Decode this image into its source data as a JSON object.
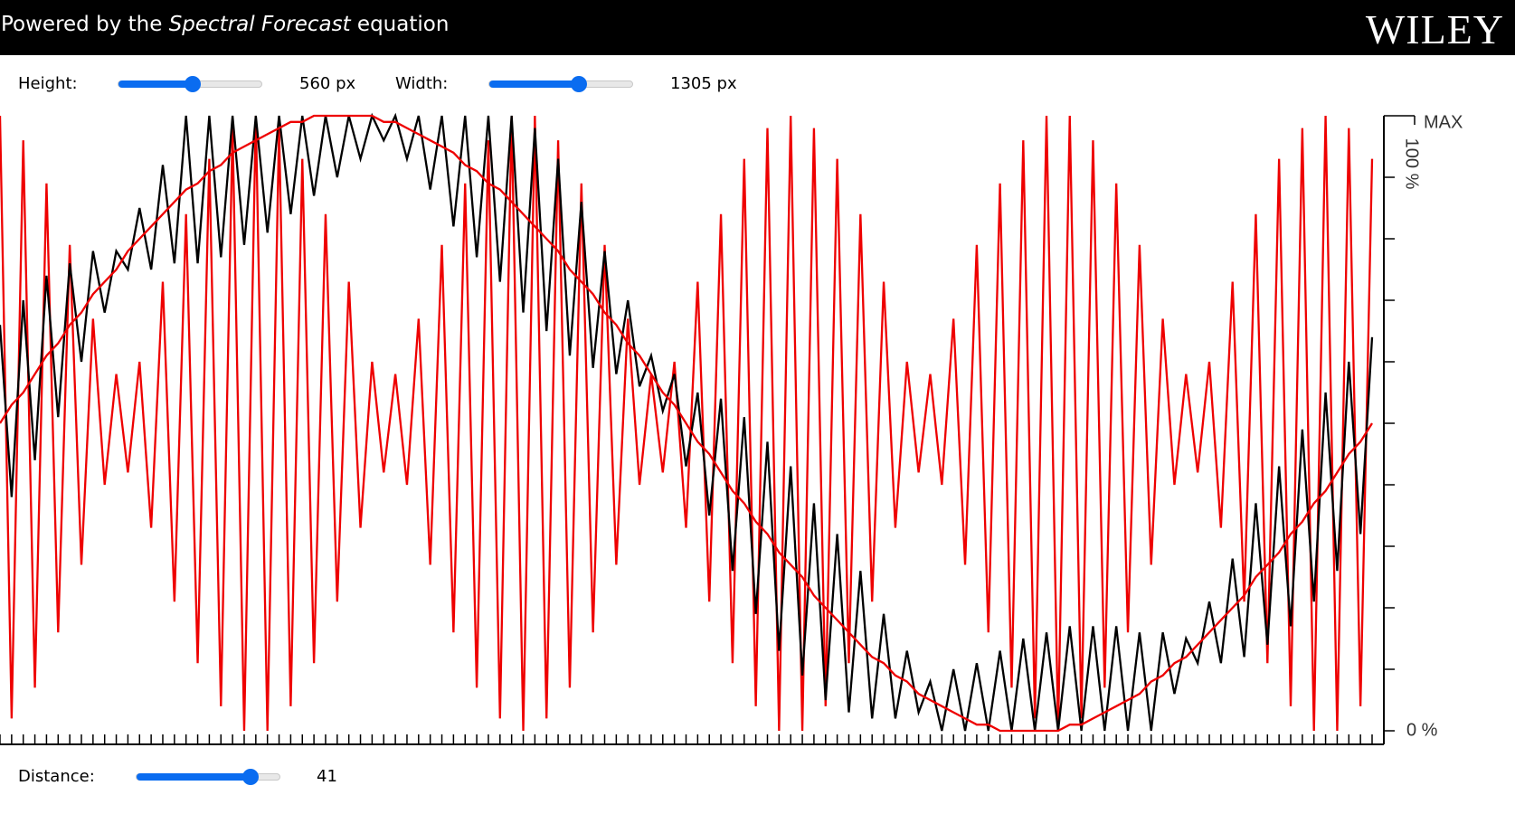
{
  "header": {
    "title_prefix": "Powered by the ",
    "title_emphasis": "Spectral Forecast",
    "title_suffix": " equation",
    "logo": "WILEY"
  },
  "controls": {
    "height_label": "Height:",
    "height_value": "560 px",
    "width_label": "Width:",
    "width_value": "1305 px",
    "distance_label": "Distance:",
    "distance_value": 41
  },
  "chart_data": {
    "type": "line",
    "x": [
      0,
      1,
      2,
      3,
      4,
      5,
      6,
      7,
      8,
      9,
      10,
      11,
      12,
      13,
      14,
      15,
      16,
      17,
      18,
      19,
      20,
      21,
      22,
      23,
      24,
      25,
      26,
      27,
      28,
      29,
      30,
      31,
      32,
      33,
      34,
      35,
      36,
      37,
      38,
      39,
      40,
      41,
      42,
      43,
      44,
      45,
      46,
      47,
      48,
      49,
      50,
      51,
      52,
      53,
      54,
      55,
      56,
      57,
      58,
      59,
      60,
      61,
      62,
      63,
      64,
      65,
      66,
      67,
      68,
      69,
      70,
      71,
      72,
      73,
      74,
      75,
      76,
      77,
      78,
      79,
      80,
      81,
      82,
      83,
      84,
      85,
      86,
      87,
      88,
      89,
      90,
      91,
      92,
      93,
      94,
      95,
      96,
      97,
      98,
      99,
      100,
      101,
      102,
      103,
      104,
      105,
      106,
      107,
      108,
      109,
      110,
      111,
      112,
      113,
      114,
      115,
      116,
      117,
      118
    ],
    "series": [
      {
        "color": "#ee0000",
        "values": [
          100,
          2,
          96,
          7,
          89,
          16,
          79,
          27,
          67,
          40,
          58,
          42,
          60,
          33,
          73,
          21,
          84,
          11,
          93,
          4,
          98,
          0,
          100,
          0,
          98,
          4,
          93,
          11,
          84,
          21,
          73,
          33,
          60,
          42,
          58,
          40,
          67,
          27,
          79,
          16,
          89,
          7,
          96,
          2,
          100,
          0,
          100,
          2,
          96,
          7,
          89,
          16,
          79,
          27,
          67,
          40,
          58,
          42,
          60,
          33,
          73,
          21,
          84,
          11,
          93,
          4,
          98,
          0,
          100,
          0,
          98,
          4,
          93,
          11,
          84,
          21,
          73,
          33,
          60,
          42,
          58,
          40,
          67,
          27,
          79,
          16,
          89,
          7,
          96,
          2,
          100,
          0,
          100,
          2,
          96,
          7,
          89,
          16,
          79,
          27,
          67,
          40,
          58,
          42,
          60,
          33,
          73,
          21,
          84,
          11,
          93,
          4,
          98,
          0,
          100,
          0,
          98,
          4,
          93
        ]
      },
      {
        "color": "#000000",
        "values": [
          66,
          38,
          70,
          44,
          74,
          51,
          76,
          60,
          78,
          68,
          78,
          75,
          85,
          75,
          92,
          76,
          100,
          76,
          100,
          77,
          100,
          79,
          100,
          81,
          100,
          84,
          100,
          87,
          100,
          90,
          100,
          93,
          100,
          96,
          100,
          93,
          100,
          88,
          100,
          82,
          100,
          77,
          100,
          73,
          100,
          68,
          98,
          65,
          93,
          61,
          86,
          59,
          78,
          58,
          70,
          56,
          61,
          52,
          58,
          43,
          55,
          35,
          54,
          26,
          51,
          19,
          47,
          13,
          43,
          9,
          37,
          5,
          32,
          3,
          26,
          2,
          19,
          2,
          13,
          3,
          8,
          0,
          10,
          0,
          11,
          0,
          13,
          0,
          15,
          0,
          16,
          0,
          17,
          0,
          17,
          0,
          17,
          0,
          16,
          0,
          16,
          6,
          15,
          11,
          21,
          11,
          28,
          12,
          37,
          14,
          43,
          17,
          49,
          21,
          55,
          26,
          60,
          32,
          64
        ]
      },
      {
        "color": "#ee0000",
        "values": [
          50,
          53,
          55,
          58,
          61,
          63,
          66,
          68,
          71,
          73,
          75,
          78,
          80,
          82,
          84,
          86,
          88,
          89,
          91,
          92,
          94,
          95,
          96,
          97,
          98,
          99,
          99,
          100,
          100,
          100,
          100,
          100,
          100,
          99,
          99,
          98,
          97,
          96,
          95,
          94,
          92,
          91,
          89,
          88,
          86,
          84,
          82,
          80,
          78,
          75,
          73,
          71,
          68,
          66,
          63,
          61,
          58,
          55,
          53,
          50,
          47,
          45,
          42,
          39,
          37,
          34,
          32,
          29,
          27,
          25,
          22,
          20,
          18,
          16,
          14,
          12,
          11,
          9,
          8,
          6,
          5,
          4,
          3,
          2,
          1,
          1,
          0,
          0,
          0,
          0,
          0,
          0,
          1,
          1,
          2,
          3,
          4,
          5,
          6,
          8,
          9,
          11,
          12,
          14,
          16,
          18,
          20,
          22,
          25,
          27,
          29,
          32,
          34,
          37,
          39,
          42,
          45,
          47,
          50
        ]
      }
    ],
    "xlim": [
      0,
      118
    ],
    "ylim": [
      0,
      100
    ],
    "yticks": [
      {
        "value": 0,
        "label": "0 %"
      },
      {
        "value": 100,
        "label": "MAX"
      }
    ],
    "minor_yticks": [
      10,
      20,
      30,
      40,
      50,
      60,
      70,
      80,
      90
    ],
    "y_label": "100 %",
    "y_axis_side": "right"
  }
}
